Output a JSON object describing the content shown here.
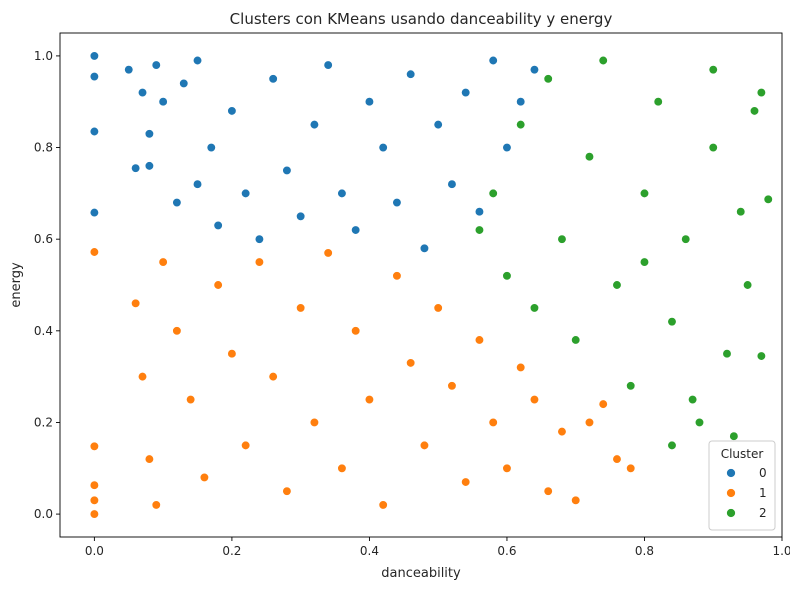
{
  "chart_data": {
    "type": "scatter",
    "title": "Clusters con KMeans usando danceability y energy",
    "xlabel": "danceability",
    "ylabel": "energy",
    "xlim": [
      -0.05,
      1.0
    ],
    "ylim": [
      -0.05,
      1.05
    ],
    "xticks": [
      0.0,
      0.2,
      0.4,
      0.6,
      0.8,
      1.0
    ],
    "xtick_labels": [
      "0.0",
      "0.2",
      "0.4",
      "0.6",
      "0.8",
      "1.0"
    ],
    "yticks": [
      0.0,
      0.2,
      0.4,
      0.6,
      0.8,
      1.0
    ],
    "ytick_labels": [
      "0.0",
      "0.2",
      "0.4",
      "0.6",
      "0.8",
      "1.0"
    ],
    "grid": false,
    "legend": {
      "title": "Cluster",
      "location": "lower-right",
      "entries": [
        {
          "label": "0",
          "color": "#1f77b4"
        },
        {
          "label": "1",
          "color": "#ff7f0e"
        },
        {
          "label": "2",
          "color": "#2ca02c"
        }
      ]
    },
    "series": [
      {
        "name": "0",
        "color": "#1f77b4",
        "points": [
          [
            0.0,
            1.0
          ],
          [
            0.0,
            0.955
          ],
          [
            0.0,
            0.835
          ],
          [
            0.0,
            0.658
          ],
          [
            0.05,
            0.97
          ],
          [
            0.06,
            0.755
          ],
          [
            0.07,
            0.92
          ],
          [
            0.08,
            0.83
          ],
          [
            0.08,
            0.76
          ],
          [
            0.09,
            0.98
          ],
          [
            0.1,
            0.9
          ],
          [
            0.12,
            0.68
          ],
          [
            0.13,
            0.94
          ],
          [
            0.15,
            0.72
          ],
          [
            0.15,
            0.99
          ],
          [
            0.17,
            0.8
          ],
          [
            0.18,
            0.63
          ],
          [
            0.2,
            0.88
          ],
          [
            0.22,
            0.7
          ],
          [
            0.24,
            0.6
          ],
          [
            0.26,
            0.95
          ],
          [
            0.28,
            0.75
          ],
          [
            0.3,
            0.65
          ],
          [
            0.32,
            0.85
          ],
          [
            0.34,
            0.98
          ],
          [
            0.36,
            0.7
          ],
          [
            0.38,
            0.62
          ],
          [
            0.4,
            0.9
          ],
          [
            0.42,
            0.8
          ],
          [
            0.44,
            0.68
          ],
          [
            0.46,
            0.96
          ],
          [
            0.48,
            0.58
          ],
          [
            0.5,
            0.85
          ],
          [
            0.52,
            0.72
          ],
          [
            0.54,
            0.92
          ],
          [
            0.56,
            0.66
          ],
          [
            0.58,
            0.99
          ],
          [
            0.6,
            0.8
          ],
          [
            0.62,
            0.9
          ],
          [
            0.64,
            0.97
          ]
        ]
      },
      {
        "name": "1",
        "color": "#ff7f0e",
        "points": [
          [
            0.0,
            0.572
          ],
          [
            0.0,
            0.148
          ],
          [
            0.0,
            0.063
          ],
          [
            0.0,
            0.03
          ],
          [
            0.0,
            0.0
          ],
          [
            0.06,
            0.46
          ],
          [
            0.07,
            0.3
          ],
          [
            0.08,
            0.12
          ],
          [
            0.09,
            0.02
          ],
          [
            0.1,
            0.55
          ],
          [
            0.12,
            0.4
          ],
          [
            0.14,
            0.25
          ],
          [
            0.16,
            0.08
          ],
          [
            0.18,
            0.5
          ],
          [
            0.2,
            0.35
          ],
          [
            0.22,
            0.15
          ],
          [
            0.24,
            0.55
          ],
          [
            0.26,
            0.3
          ],
          [
            0.28,
            0.05
          ],
          [
            0.3,
            0.45
          ],
          [
            0.32,
            0.2
          ],
          [
            0.34,
            0.57
          ],
          [
            0.36,
            0.1
          ],
          [
            0.38,
            0.4
          ],
          [
            0.4,
            0.25
          ],
          [
            0.42,
            0.02
          ],
          [
            0.44,
            0.52
          ],
          [
            0.46,
            0.33
          ],
          [
            0.48,
            0.15
          ],
          [
            0.5,
            0.45
          ],
          [
            0.52,
            0.28
          ],
          [
            0.54,
            0.07
          ],
          [
            0.56,
            0.38
          ],
          [
            0.58,
            0.2
          ],
          [
            0.6,
            0.1
          ],
          [
            0.62,
            0.32
          ],
          [
            0.64,
            0.25
          ],
          [
            0.66,
            0.05
          ],
          [
            0.68,
            0.18
          ],
          [
            0.7,
            0.03
          ],
          [
            0.72,
            0.2
          ],
          [
            0.74,
            0.24
          ],
          [
            0.76,
            0.12
          ],
          [
            0.78,
            0.1
          ]
        ]
      },
      {
        "name": "2",
        "color": "#2ca02c",
        "points": [
          [
            0.56,
            0.62
          ],
          [
            0.58,
            0.7
          ],
          [
            0.6,
            0.52
          ],
          [
            0.62,
            0.85
          ],
          [
            0.64,
            0.45
          ],
          [
            0.66,
            0.95
          ],
          [
            0.68,
            0.6
          ],
          [
            0.7,
            0.38
          ],
          [
            0.72,
            0.78
          ],
          [
            0.74,
            0.99
          ],
          [
            0.76,
            0.5
          ],
          [
            0.78,
            0.28
          ],
          [
            0.8,
            0.7
          ],
          [
            0.82,
            0.9
          ],
          [
            0.84,
            0.42
          ],
          [
            0.86,
            0.6
          ],
          [
            0.88,
            0.2
          ],
          [
            0.9,
            0.8
          ],
          [
            0.92,
            0.35
          ],
          [
            0.94,
            0.66
          ],
          [
            0.95,
            0.5
          ],
          [
            0.96,
            0.88
          ],
          [
            0.97,
            0.92
          ],
          [
            0.97,
            0.345
          ],
          [
            0.98,
            0.687
          ],
          [
            0.84,
            0.15
          ],
          [
            0.87,
            0.25
          ],
          [
            0.93,
            0.17
          ],
          [
            0.9,
            0.97
          ],
          [
            0.8,
            0.55
          ]
        ]
      }
    ]
  }
}
